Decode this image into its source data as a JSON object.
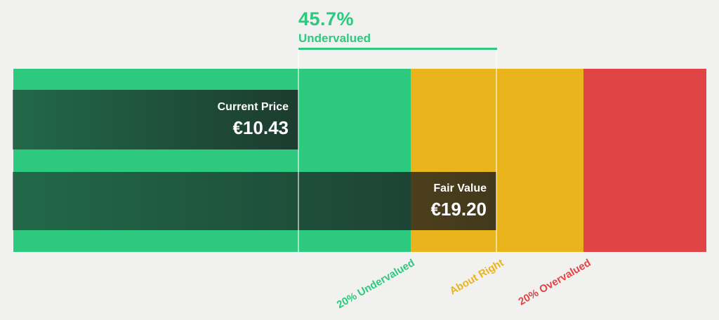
{
  "colors": {
    "bg": "#f1f1ef",
    "green": "#2dc97e",
    "amber": "#eab41c",
    "red": "#e04444",
    "bar_overlay_dark": "rgba(24,25,28,0.55) to rgba(24,25,28,0.80)",
    "bar_text": "#ffffff"
  },
  "header": {
    "percent": "45.7%",
    "label": "Undervalued"
  },
  "bars": {
    "current_price": {
      "label": "Current Price",
      "value": "€10.43"
    },
    "fair_value": {
      "label": "Fair Value",
      "value": "€19.20"
    }
  },
  "zones": [
    {
      "label": "20% Undervalued",
      "color": "#2dc97e"
    },
    {
      "label": "About Right",
      "color": "#eab41c"
    },
    {
      "label": "20% Overvalued",
      "color": "#e04444"
    }
  ],
  "chart_data": {
    "type": "bar",
    "title": "45.7% Undervalued",
    "orientation": "horizontal",
    "currency": "EUR",
    "series": [
      {
        "name": "Current Price",
        "value": 10.43
      },
      {
        "name": "Fair Value",
        "value": 19.2
      }
    ],
    "discount_pct": 45.7,
    "discount_label": "Undervalued",
    "zones": [
      {
        "label": "20% Undervalued",
        "range_eur": [
          null,
          15.36
        ],
        "color": "#2dc97e"
      },
      {
        "label": "About Right",
        "range_eur": [
          15.36,
          23.04
        ],
        "color": "#eab41c"
      },
      {
        "label": "20% Overvalued",
        "range_eur": [
          23.04,
          null
        ],
        "color": "#e04444"
      }
    ],
    "annotations": [
      "Guide line at Current Price (€10.43)",
      "Guide line at Fair Value (€19.20), center of About Right zone"
    ],
    "legend": false,
    "grid": false
  }
}
